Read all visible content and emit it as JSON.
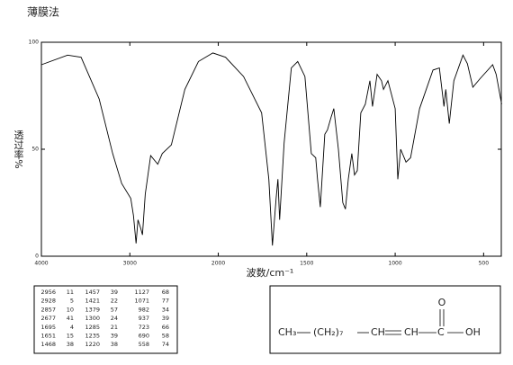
{
  "chart_data": {
    "type": "line",
    "title": "薄膜法",
    "x_label": "波数/cm⁻¹",
    "y_label": "透过率%",
    "x": [
      4000,
      3704,
      3551,
      3347,
      3194,
      3092,
      2990,
      2959,
      2929,
      2908,
      2877,
      2857,
      2826,
      2765,
      2684,
      2633,
      2531,
      2378,
      2224,
      2061,
      1959,
      1857,
      1755,
      1714,
      1694,
      1673,
      1663,
      1653,
      1628,
      1587,
      1551,
      1510,
      1474,
      1449,
      1439,
      1423,
      1398,
      1383,
      1362,
      1347,
      1321,
      1296,
      1281,
      1265,
      1245,
      1230,
      1214,
      1194,
      1169,
      1143,
      1128,
      1102,
      1077,
      1066,
      1041,
      1000,
      985,
      969,
      939,
      913,
      862,
      786,
      750,
      724,
      714,
      694,
      668,
      617,
      592,
      561,
      520,
      449,
      429,
      398
    ],
    "values": [
      89.5,
      94,
      93,
      73.5,
      48,
      34,
      27,
      19,
      6,
      17,
      13,
      10,
      29,
      47,
      43,
      48,
      52,
      78,
      91,
      95,
      93,
      84,
      67,
      36,
      5,
      27,
      36,
      17,
      53,
      88,
      91,
      84,
      48,
      46,
      36,
      23,
      57,
      59,
      65,
      69,
      50,
      25,
      22,
      36,
      48,
      38,
      40,
      67,
      71,
      82,
      70,
      85,
      82,
      78,
      82,
      69,
      36,
      50,
      44,
      46,
      69,
      87,
      88,
      70,
      78,
      62,
      82,
      94,
      90,
      79,
      83,
      89.5,
      85,
      71
    ],
    "color": "#000000",
    "xlim": [
      4000,
      400
    ],
    "x_scale_change": 2000,
    "xticks": [
      4000,
      3000,
      2000,
      1500,
      1000,
      500
    ],
    "ylim": [
      0,
      100
    ],
    "yticks": [
      0,
      50,
      100
    ]
  },
  "peak_table": {
    "rows": [
      [
        2956,
        11,
        1457,
        39,
        1127,
        68
      ],
      [
        2928,
        5,
        1421,
        22,
        1071,
        77
      ],
      [
        2857,
        10,
        1379,
        57,
        982,
        34
      ],
      [
        2677,
        41,
        1300,
        24,
        937,
        39
      ],
      [
        1695,
        4,
        1285,
        21,
        723,
        66
      ],
      [
        1651,
        15,
        1235,
        39,
        690,
        58
      ],
      [
        1468,
        38,
        1220,
        38,
        558,
        74
      ]
    ]
  },
  "structure": {
    "parts": [
      "CH₃",
      "(CH₂)₇",
      "CH",
      "CH",
      "C",
      "O",
      "OH"
    ]
  }
}
